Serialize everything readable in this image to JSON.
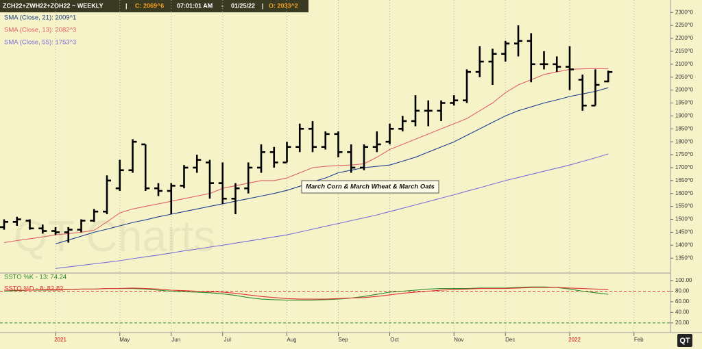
{
  "header": [
    "ZCH22+ZWH22+ZOH22  ~  WEEKLY",
    "|",
    "C: 2069^6",
    "07:01:01 AM",
    "-",
    "01/25/22",
    "|",
    "O: 2033^2"
  ],
  "watermark": "QT Charts",
  "logo": "QT",
  "chart_data": [
    {
      "type": "ohlc",
      "annotation": "March Corn & March Wheat & March Oats",
      "categories": [
        null,
        null,
        null,
        null,
        "2021",
        null,
        null,
        null,
        null,
        "May",
        null,
        null,
        null,
        "Jun",
        null,
        null,
        null,
        "Jul",
        null,
        null,
        null,
        null,
        "Aug",
        null,
        null,
        null,
        "Sep",
        null,
        null,
        null,
        "Oct",
        null,
        null,
        null,
        null,
        "Nov",
        null,
        null,
        null,
        "Dec",
        null,
        null,
        null,
        null,
        "2022",
        null,
        null,
        null,
        null,
        "Feb"
      ],
      "open": [
        1470,
        1490,
        1495,
        1465,
        1455,
        1450,
        1460,
        1495,
        1530,
        1620,
        1690,
        1790,
        1620,
        1610,
        1630,
        1700,
        1720,
        1640,
        1580,
        1620,
        1700,
        1760,
        1720,
        1780,
        1850,
        1780,
        1830,
        1760,
        1700,
        1780,
        1800,
        1850,
        1880,
        1920,
        1920,
        1950,
        1960,
        2070,
        2110,
        2140,
        2180,
        2190,
        2100,
        2100,
        2090,
        2040,
        1940,
        2033.25,
        null,
        null
      ],
      "high": [
        1500,
        1510,
        1500,
        1480,
        1470,
        1470,
        1500,
        1540,
        1670,
        1730,
        1810,
        1790,
        1640,
        1640,
        1710,
        1750,
        1730,
        1720,
        1640,
        1720,
        1790,
        1780,
        1800,
        1870,
        1880,
        1840,
        1840,
        1790,
        1790,
        1840,
        1870,
        1900,
        1980,
        1960,
        1960,
        1980,
        2080,
        2170,
        2160,
        2190,
        2250,
        2220,
        2150,
        2130,
        2170,
        2060,
        2080,
        2075,
        null,
        null
      ],
      "low": [
        1460,
        1475,
        1460,
        1445,
        1440,
        1410,
        1450,
        1490,
        1520,
        1610,
        1680,
        1610,
        1590,
        1520,
        1620,
        1680,
        1580,
        1560,
        1520,
        1600,
        1680,
        1700,
        1720,
        1760,
        1760,
        1770,
        1740,
        1680,
        1690,
        1760,
        1790,
        1840,
        1860,
        1860,
        1880,
        1940,
        1950,
        2050,
        2020,
        2110,
        2130,
        2030,
        2080,
        2070,
        2000,
        1920,
        1940,
        2030,
        null,
        null
      ],
      "close": [
        1490,
        1500,
        1465,
        1455,
        1450,
        1460,
        1495,
        1530,
        1650,
        1690,
        1800,
        1620,
        1610,
        1630,
        1700,
        1730,
        1640,
        1580,
        1620,
        1700,
        1760,
        1720,
        1780,
        1850,
        1780,
        1830,
        1760,
        1700,
        1780,
        1790,
        1850,
        1880,
        1920,
        1920,
        1950,
        1960,
        2070,
        2110,
        2140,
        2180,
        2190,
        2100,
        2100,
        2090,
        2080,
        1940,
        2020,
        2069.75,
        null,
        null
      ],
      "bar_color": "#000000",
      "series": [
        {
          "name": "SMA (Close, 21): 2009^1",
          "color": "#1f3f8f",
          "values": [
            null,
            null,
            null,
            null,
            1405,
            1420,
            1435,
            1450,
            1462,
            1475,
            1488,
            1498,
            1510,
            1520,
            1530,
            1540,
            1550,
            1560,
            1570,
            1580,
            1590,
            1600,
            1612,
            1628,
            1645,
            1660,
            1680,
            1690,
            1700,
            1705,
            1710,
            1725,
            1740,
            1760,
            1780,
            1800,
            1825,
            1850,
            1875,
            1900,
            1920,
            1935,
            1950,
            1962,
            1975,
            1985,
            1995,
            2009,
            null,
            null
          ]
        },
        {
          "name": "SMA (Close, 13): 2082^3",
          "color": "#e0606a",
          "values": [
            1410,
            1418,
            1425,
            1432,
            1440,
            1445,
            1450,
            1458,
            1490,
            1525,
            1540,
            1550,
            1560,
            1570,
            1580,
            1590,
            1600,
            1620,
            1630,
            1640,
            1650,
            1650,
            1660,
            1680,
            1700,
            1705,
            1708,
            1710,
            1715,
            1740,
            1770,
            1790,
            1810,
            1830,
            1850,
            1870,
            1890,
            1920,
            1950,
            1990,
            2020,
            2040,
            2060,
            2070,
            2080,
            2082,
            2083,
            2082,
            null,
            null
          ]
        },
        {
          "name": "SMA (Close, 55): 1753^3",
          "color": "#7a6fd8",
          "values": [
            null,
            null,
            null,
            null,
            1310,
            1316,
            1322,
            1328,
            1334,
            1340,
            1348,
            1355,
            1362,
            1370,
            1378,
            1385,
            1393,
            1400,
            1408,
            1416,
            1424,
            1432,
            1440,
            1451,
            1462,
            1473,
            1484,
            1495,
            1506,
            1517,
            1530,
            1543,
            1556,
            1569,
            1582,
            1595,
            1609,
            1622,
            1636,
            1650,
            1662,
            1674,
            1686,
            1698,
            1710,
            1724,
            1738,
            1753,
            null,
            null
          ]
        }
      ],
      "ylim": [
        1295,
        2335
      ],
      "yticks": [
        {
          "value": 2300,
          "label": "2300^0"
        },
        {
          "value": 2250,
          "label": "2250^0"
        },
        {
          "value": 2200,
          "label": "2200^0"
        },
        {
          "value": 2150,
          "label": "2150^0"
        },
        {
          "value": 2100,
          "label": "2100^0"
        },
        {
          "value": 2050,
          "label": "2050^0"
        },
        {
          "value": 2000,
          "label": "2000^0"
        },
        {
          "value": 1950,
          "label": "1950^0"
        },
        {
          "value": 1900,
          "label": "1900^0"
        },
        {
          "value": 1850,
          "label": "1850^0"
        },
        {
          "value": 1800,
          "label": "1800^0"
        },
        {
          "value": 1750,
          "label": "1750^0"
        },
        {
          "value": 1700,
          "label": "1700^0"
        },
        {
          "value": 1650,
          "label": "1650^0"
        },
        {
          "value": 1600,
          "label": "1600^0"
        },
        {
          "value": 1550,
          "label": "1550^0"
        },
        {
          "value": 1500,
          "label": "1500^0"
        },
        {
          "value": 1450,
          "label": "1450^0"
        },
        {
          "value": 1400,
          "label": "1400^0"
        },
        {
          "value": 1350,
          "label": "1350^0"
        }
      ]
    },
    {
      "type": "line",
      "series": [
        {
          "name": "SSTO %K - 13: 74.24",
          "color": "#2a8a2a",
          "values": [
            80,
            81,
            82,
            82,
            82,
            83,
            84,
            84,
            85,
            85,
            85,
            84,
            82,
            80,
            79,
            78,
            77,
            75,
            72,
            68,
            65,
            64,
            63,
            63,
            63,
            64,
            65,
            67,
            70,
            74,
            78,
            80,
            82,
            84,
            85,
            85,
            85,
            86,
            86,
            86,
            87,
            88,
            88,
            87,
            84,
            80,
            77,
            74.24,
            null,
            null
          ]
        },
        {
          "name": "SSTO %D - 8: 82.82",
          "color": "#e03030",
          "values": [
            82,
            82,
            82,
            83,
            83,
            83,
            84,
            84,
            85,
            85,
            86,
            85,
            84,
            82,
            81,
            80,
            79,
            78,
            76,
            73,
            70,
            68,
            66,
            65,
            65,
            65,
            66,
            67,
            68,
            70,
            73,
            76,
            78,
            80,
            82,
            83,
            84,
            85,
            85,
            85,
            86,
            87,
            87,
            87,
            86,
            85,
            84,
            82.82,
            null,
            null
          ]
        }
      ],
      "levels": [
        {
          "value": 80,
          "color": "#e03030"
        },
        {
          "value": 20,
          "color": "#2a8a2a"
        }
      ],
      "ylim": [
        3,
        113
      ],
      "yticks": [
        {
          "value": 100,
          "label": "100.00"
        },
        {
          "value": 80,
          "label": "80.00"
        },
        {
          "value": 60,
          "label": "60.00"
        },
        {
          "value": 40,
          "label": "40.00"
        },
        {
          "value": 20,
          "label": "20.00"
        }
      ]
    }
  ]
}
